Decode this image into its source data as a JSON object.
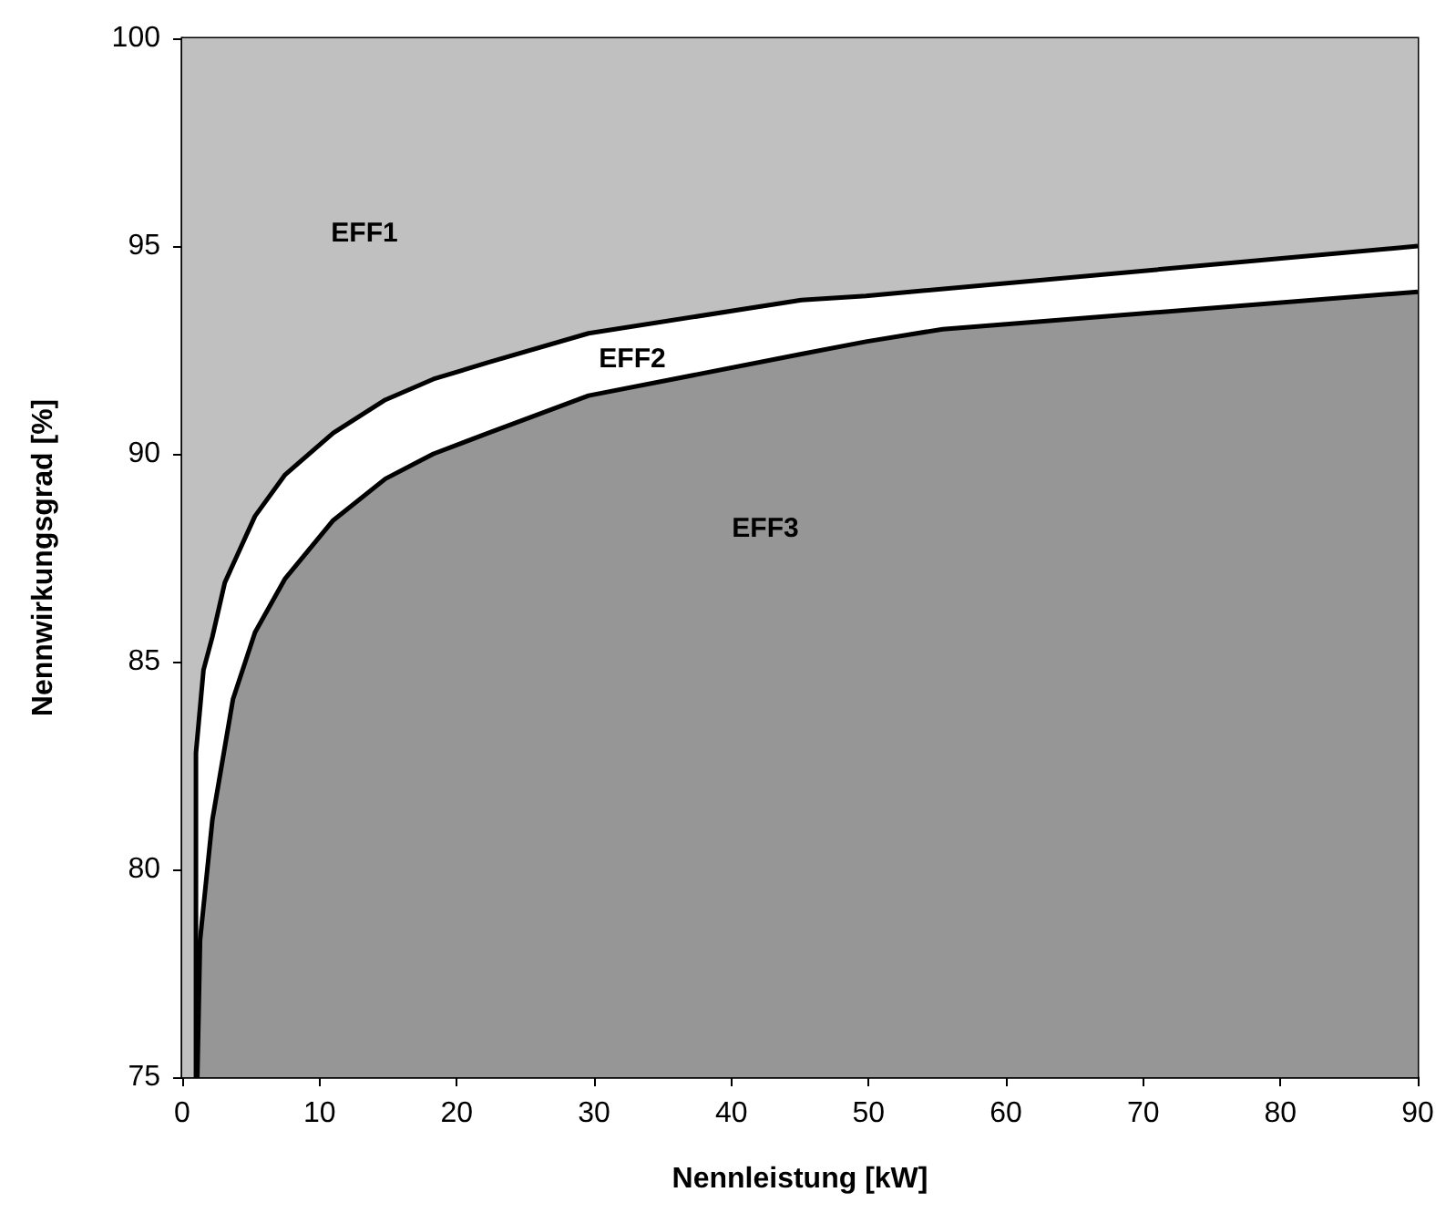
{
  "chart_data": {
    "type": "area",
    "xlabel": "Nennleistung [kW]",
    "ylabel": "Nennwirkungsgrad [%]",
    "xlim": [
      0,
      90
    ],
    "xticks": [
      0,
      10,
      20,
      30,
      40,
      50,
      60,
      70,
      80,
      90
    ],
    "ylim": [
      75,
      100
    ],
    "yticks": [
      75,
      80,
      85,
      90,
      95,
      100
    ],
    "grid": false,
    "marker": "none",
    "line_style": "solid",
    "bands": [
      {
        "axis": "y",
        "from": 75,
        "to": 100,
        "color": "#c0c0c0"
      }
    ],
    "series": [
      {
        "color": "#ffffff",
        "x": [
          1.0,
          1.0,
          1.55,
          2.2,
          3.1,
          5.3,
          7.5,
          11,
          14.8,
          18.3,
          22.3,
          29.6,
          45.1,
          49.8,
          90
        ],
        "values": [
          75,
          82.8,
          84.8,
          85.6,
          86.9,
          88.5,
          89.5,
          90.5,
          91.3,
          91.8,
          92.2,
          92.9,
          93.7,
          93.8,
          95.0
        ]
      },
      {
        "color": "#969696",
        "x": [
          1.1,
          1.3,
          2.2,
          3.7,
          5.3,
          7.5,
          11,
          14.8,
          18.3,
          22.3,
          29.6,
          45.1,
          49.8,
          55.4,
          90
        ],
        "values": [
          75,
          78.3,
          81.2,
          84.1,
          85.7,
          87.0,
          88.4,
          89.4,
          90.0,
          90.5,
          91.4,
          92.4,
          92.7,
          93.0,
          93.9
        ]
      }
    ],
    "annotations": [
      "EFF1",
      "EFF2",
      "EFF3"
    ]
  }
}
